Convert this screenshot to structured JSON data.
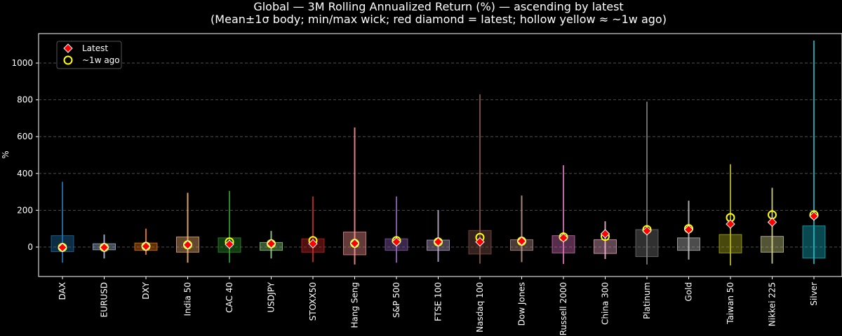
{
  "chart_data": {
    "type": "candlestick-range",
    "title": "Global — 3M Rolling Annualized Return (%) — ascending by latest",
    "subtitle": "(Mean±1σ body; min/max wick; red diamond = latest; hollow yellow ≈ ~1w ago)",
    "xlabel": "",
    "ylabel": "%",
    "ylim": [
      -160,
      1160
    ],
    "yticks": [
      0,
      200,
      400,
      600,
      800,
      1000
    ],
    "grid": "horizontal dashed",
    "legend_position": "top-left",
    "legend": [
      {
        "label": "Latest",
        "marker": "red-diamond"
      },
      {
        "label": "~1w ago",
        "marker": "hollow-yellow-circle"
      }
    ],
    "series": [
      {
        "name": "DAX",
        "color": "#1f77b4",
        "min": -85,
        "max": 355,
        "body_low": -25,
        "body_high": 62,
        "latest": -2,
        "week_ago": -2
      },
      {
        "name": "EURUSD",
        "color": "#aec7e8",
        "min": -62,
        "max": 68,
        "body_low": -15,
        "body_high": 18,
        "latest": -2,
        "week_ago": -2
      },
      {
        "name": "DXY",
        "color": "#ff7f0e",
        "min": -42,
        "max": 100,
        "body_low": -18,
        "body_high": 22,
        "latest": 4,
        "week_ago": 4
      },
      {
        "name": "India 50",
        "color": "#ffbb78",
        "min": -85,
        "max": 295,
        "body_low": -28,
        "body_high": 55,
        "latest": 12,
        "week_ago": 12
      },
      {
        "name": "CAC 40",
        "color": "#2ca02c",
        "min": -85,
        "max": 305,
        "body_low": -28,
        "body_high": 50,
        "latest": 15,
        "week_ago": 28
      },
      {
        "name": "USDJPY",
        "color": "#98df8a",
        "min": -62,
        "max": 88,
        "body_low": -18,
        "body_high": 25,
        "latest": 18,
        "week_ago": 18
      },
      {
        "name": "STOXX50",
        "color": "#d62728",
        "min": -82,
        "max": 275,
        "body_low": -28,
        "body_high": 45,
        "latest": 18,
        "week_ago": 35
      },
      {
        "name": "Hang Seng",
        "color": "#ff9896",
        "min": -95,
        "max": 650,
        "body_low": -42,
        "body_high": 82,
        "latest": 20,
        "week_ago": 20
      },
      {
        "name": "S&P 500",
        "color": "#9467bd",
        "min": -85,
        "max": 275,
        "body_low": -18,
        "body_high": 45,
        "latest": 28,
        "week_ago": 35
      },
      {
        "name": "FTSE 100",
        "color": "#c5b0d5",
        "min": -80,
        "max": 200,
        "body_low": -18,
        "body_high": 38,
        "latest": 28,
        "week_ago": 28
      },
      {
        "name": "Nasdaq 100",
        "color": "#8c564b",
        "min": -90,
        "max": 830,
        "body_low": -38,
        "body_high": 90,
        "latest": 28,
        "week_ago": 52
      },
      {
        "name": "Dow Jones",
        "color": "#c49c94",
        "min": -82,
        "max": 280,
        "body_low": -18,
        "body_high": 40,
        "latest": 32,
        "week_ago": 32
      },
      {
        "name": "Russell 2000",
        "color": "#e377c2",
        "min": -92,
        "max": 445,
        "body_low": -32,
        "body_high": 62,
        "latest": 50,
        "week_ago": 55
      },
      {
        "name": "China 300",
        "color": "#f7b6d2",
        "min": -65,
        "max": 140,
        "body_low": -35,
        "body_high": 40,
        "latest": 72,
        "week_ago": 58
      },
      {
        "name": "Platinum",
        "color": "#7f7f7f",
        "min": -95,
        "max": 790,
        "body_low": -52,
        "body_high": 95,
        "latest": 88,
        "week_ago": 95
      },
      {
        "name": "Gold",
        "color": "#c7c7c7",
        "min": -68,
        "max": 252,
        "body_low": -18,
        "body_high": 50,
        "latest": 95,
        "week_ago": 100
      },
      {
        "name": "Taiwan 50",
        "color": "#bcbd22",
        "min": -100,
        "max": 450,
        "body_low": -32,
        "body_high": 68,
        "latest": 125,
        "week_ago": 160
      },
      {
        "name": "Nikkei 225",
        "color": "#dbdb8d",
        "min": -90,
        "max": 322,
        "body_low": -28,
        "body_high": 58,
        "latest": 135,
        "week_ago": 175
      },
      {
        "name": "Silver",
        "color": "#17becf",
        "min": -92,
        "max": 1122,
        "body_low": -60,
        "body_high": 115,
        "latest": 168,
        "week_ago": 175
      }
    ]
  }
}
